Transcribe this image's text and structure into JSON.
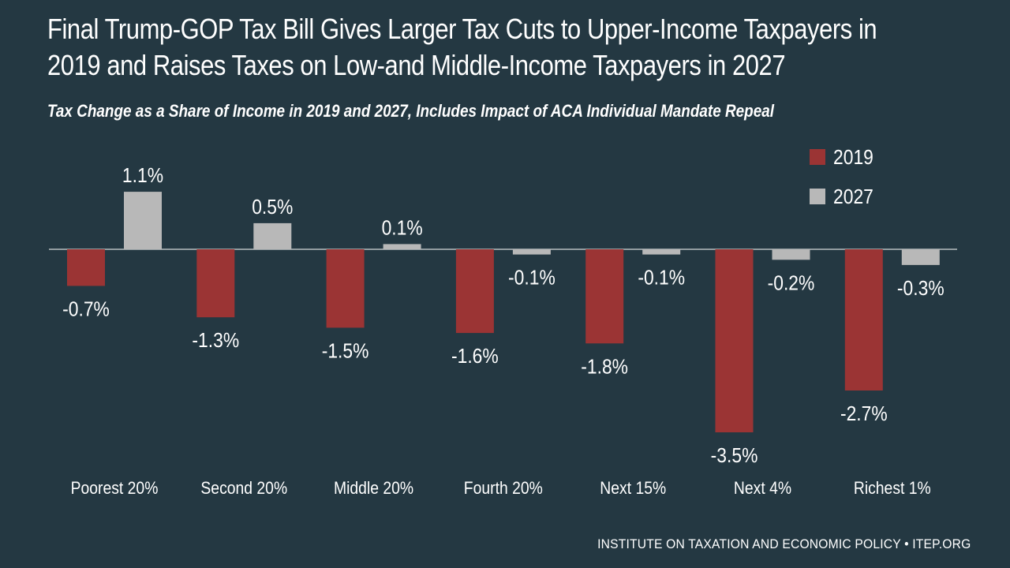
{
  "title_line1": "Final Trump-GOP Tax Bill Gives Larger Tax Cuts to Upper-Income Taxpayers in",
  "title_line2": "2019 and Raises Taxes on Low-and Middle-Income Taxpayers in 2027",
  "subtitle": "Tax Change as a Share of Income in 2019 and 2027, Includes Impact of ACA Individual Mandate Repeal",
  "footer": "INSTITUTE ON TAXATION AND ECONOMIC POLICY • ITEP.ORG",
  "colors": {
    "background": "#243842",
    "series_2019": "#9b3434",
    "series_2027": "#b8b8b8",
    "baseline": "#ffffff",
    "text": "#ffffff"
  },
  "chart_data": {
    "type": "bar",
    "title": "Final Trump-GOP Tax Bill Gives Larger Tax Cuts to Upper-Income Taxpayers in 2019 and Raises Taxes on Low-and Middle-Income Taxpayers in 2027",
    "subtitle": "Tax Change as a Share of Income in 2019 and 2027, Includes Impact of ACA Individual Mandate Repeal",
    "categories": [
      "Poorest 20%",
      "Second 20%",
      "Middle 20%",
      "Fourth 20%",
      "Next 15%",
      "Next 4%",
      "Richest 1%"
    ],
    "series": [
      {
        "name": "2019",
        "values": [
          -0.7,
          -1.3,
          -1.5,
          -1.6,
          -1.8,
          -3.5,
          -2.7
        ],
        "labels": [
          "-0.7%",
          "-1.3%",
          "-1.5%",
          "-1.6%",
          "-1.8%",
          "-3.5%",
          "-2.7%"
        ]
      },
      {
        "name": "2027",
        "values": [
          1.1,
          0.5,
          0.1,
          -0.1,
          -0.1,
          -0.2,
          -0.3
        ],
        "labels": [
          "1.1%",
          "0.5%",
          "0.1%",
          "-0.1%",
          "-0.1%",
          "-0.2%",
          "-0.3%"
        ]
      }
    ],
    "ylim": [
      -3.5,
      1.1
    ],
    "xlabel": "",
    "ylabel": "",
    "legend": "top-right",
    "grid": false
  }
}
